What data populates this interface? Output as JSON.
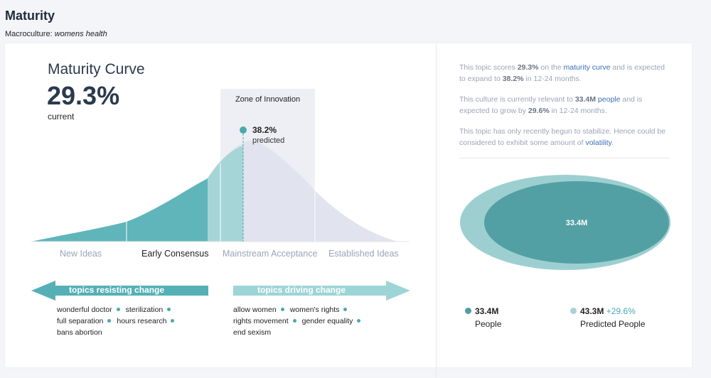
{
  "header": {
    "title": "Maturity",
    "macro_label": "Macroculture:",
    "macro_value": "womens health"
  },
  "curve": {
    "title": "Maturity Curve",
    "current_value": "29.3%",
    "current_label": "current",
    "zone_label": "Zone of Innovation",
    "predicted_value": "38.2%",
    "predicted_label": "predicted",
    "stages": [
      {
        "label": "New Ideas",
        "active": false
      },
      {
        "label": "Early Consensus",
        "active": true
      },
      {
        "label": "Mainstream Acceptance",
        "active": false
      },
      {
        "label": "Established Ideas",
        "active": false
      }
    ],
    "colors": {
      "fill_current": "#5fb5ba",
      "fill_zone": "#a6d5d7",
      "fill_rest": "#e1e3ee",
      "zone_bg": "#eeeff4"
    }
  },
  "resisting": {
    "label": "topics resisting change",
    "color": "#55b0b6",
    "topics": [
      "wonderful doctor",
      "sterilization",
      "full separation",
      "hours research",
      "bans abortion"
    ]
  },
  "driving": {
    "label": "topics driving change",
    "color": "#9dd4d5",
    "topics": [
      "allow women",
      "women's rights",
      "rights movement",
      "gender equality",
      "end sexism"
    ]
  },
  "summary": {
    "p1": {
      "a": "This topic scores ",
      "b": "29.3%",
      "c": " on the ",
      "link": "maturity curve",
      "d": " and is expected to expand to ",
      "e": "38.2%",
      "f": " in 12-24 months."
    },
    "p2": {
      "a": "This culture is currently relevant to ",
      "b": "33.4M",
      "link": "people",
      "c": " and is expected to grow by ",
      "d": "29.6%",
      "e": " in 12-24 months."
    },
    "p3": {
      "a": "This topic has only recently begun to stabilize. Hence could be considered to exhibit some amount of ",
      "link": "volatility",
      "b": "."
    }
  },
  "venn": {
    "inner_value": "33.4M",
    "outer_color": "#9dcfd1",
    "inner_color": "#52a0a3"
  },
  "legend": {
    "people": {
      "value": "33.4M",
      "label": "People",
      "color": "#4e9fa3"
    },
    "predicted": {
      "value": "43.3M",
      "change": "+29.6%",
      "label": "Predicted People",
      "color": "#a8d3d5"
    }
  }
}
